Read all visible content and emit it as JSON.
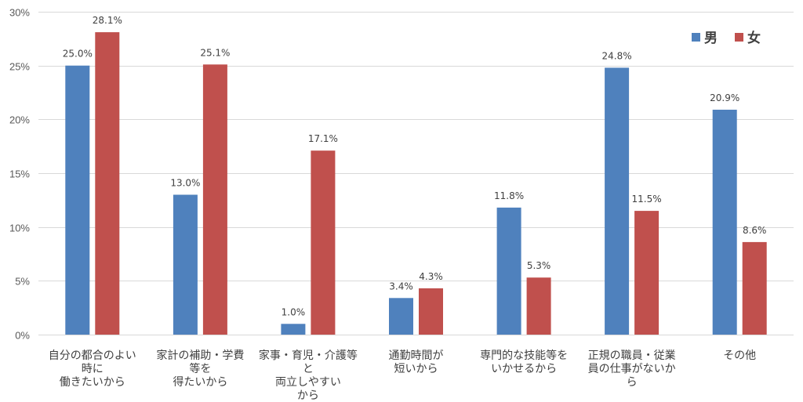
{
  "chart_data": {
    "type": "bar",
    "categories": [
      "自分の都合のよい時に働きたいから",
      "家計の補助・学費等を得たいから",
      "家事・育児・介護等と両立しやすいから",
      "通勤時間が短いから",
      "専門的な技能等をいかせるから",
      "正規の職員・従業員の仕事がないから",
      "その他"
    ],
    "category_lines": [
      [
        "自分の都合のよい",
        "時に",
        "働きたいから"
      ],
      [
        "家計の補助・学費",
        "等を",
        "得たいから"
      ],
      [
        "家事・育児・介護等",
        "と",
        "両立しやすい",
        "から"
      ],
      [
        "通勤時間が",
        "短いから"
      ],
      [
        "専門的な技能等を",
        "いかせるから"
      ],
      [
        "正規の職員・従業",
        "員の仕事がないか",
        "ら"
      ],
      [
        "その他"
      ]
    ],
    "series": [
      {
        "name": "男",
        "values": [
          25.0,
          13.0,
          1.0,
          3.4,
          11.8,
          24.8,
          20.9
        ],
        "labels": [
          "25.0%",
          "13.0%",
          "1.0%",
          "3.4%",
          "11.8%",
          "24.8%",
          "20.9%"
        ],
        "color": "#4f81bd"
      },
      {
        "name": "女",
        "values": [
          28.1,
          25.1,
          17.1,
          4.3,
          5.3,
          11.5,
          8.6
        ],
        "labels": [
          "28.1%",
          "25.1%",
          "17.1%",
          "4.3%",
          "5.3%",
          "11.5%",
          "8.6%"
        ],
        "color": "#c0504d"
      }
    ],
    "ylim": [
      0,
      30
    ],
    "yticks": [
      "0%",
      "5%",
      "10%",
      "15%",
      "20%",
      "25%",
      "30%"
    ],
    "grid": true,
    "legend_position": "top-right",
    "xlabel": "",
    "ylabel": ""
  }
}
